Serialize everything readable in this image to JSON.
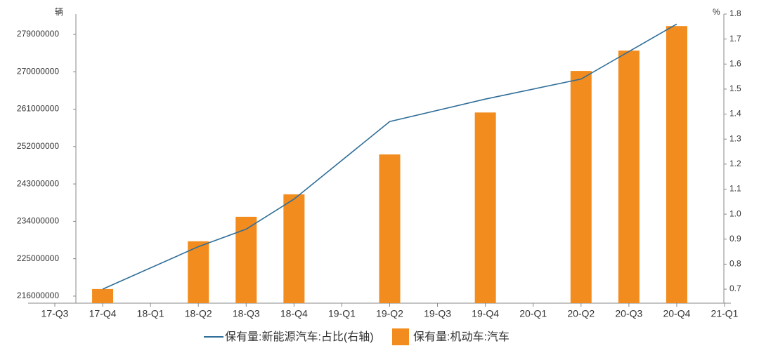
{
  "chart_data": {
    "type": "bar-line",
    "left_unit": "辆",
    "right_unit": "%",
    "categories": [
      "17-Q3",
      "17-Q4",
      "18-Q1",
      "18-Q2",
      "18-Q3",
      "18-Q4",
      "19-Q1",
      "19-Q2",
      "19-Q3",
      "19-Q4",
      "20-Q1",
      "20-Q2",
      "20-Q3",
      "20-Q4",
      "21-Q1"
    ],
    "ylim": [
      214300000,
      283900000
    ],
    "yticks": [
      216000000,
      225000000,
      234000000,
      243000000,
      252000000,
      261000000,
      270000000,
      279000000
    ],
    "y2lim": [
      0.644,
      1.8
    ],
    "y2ticks": [
      0.7,
      0.8,
      0.9,
      {
        "value": 1,
        "label": "1.0"
      },
      1.1,
      1.2,
      1.3,
      1.4,
      1.5,
      1.6,
      1.7,
      1.8
    ],
    "series": [
      {
        "name": "保有量:新能源汽车:占比(右轴)",
        "type": "line",
        "axis": "y2",
        "color": "#2e6e99",
        "x": [
          "17-Q4",
          "18-Q2",
          "18-Q3",
          "18-Q4",
          "19-Q2",
          "19-Q4",
          "20-Q2",
          "20-Q3",
          "20-Q4"
        ],
        "values": [
          0.7,
          0.87,
          0.94,
          1.06,
          1.37,
          1.46,
          1.54,
          1.65,
          1.76
        ]
      },
      {
        "name": "保有量:机动车:汽车",
        "type": "bar",
        "color": "#f28c1e",
        "x": [
          "17-Q4",
          "18-Q2",
          "18-Q3",
          "18-Q4",
          "19-Q2",
          "19-Q4",
          "20-Q2",
          "20-Q3",
          "20-Q4"
        ],
        "values": [
          217700000,
          229200000,
          235100000,
          240500000,
          250100000,
          260200000,
          270200000,
          275100000,
          281000000
        ]
      }
    ]
  }
}
